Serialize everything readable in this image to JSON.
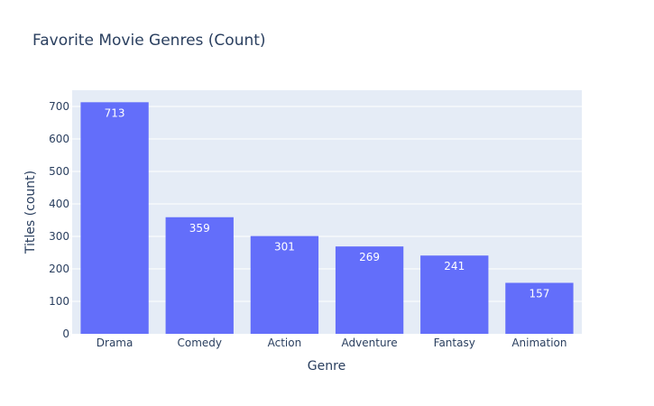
{
  "colors": {
    "plot_background": "#e5ecf6",
    "gridline": "#ffffff",
    "bar": "#636efa",
    "text": "#2a3f5f",
    "bar_label": "#ffffff"
  },
  "chart_data": {
    "type": "bar",
    "title": "Favorite Movie Genres (Count)",
    "xlabel": "Genre",
    "ylabel": "Titles (count)",
    "categories": [
      "Drama",
      "Comedy",
      "Action",
      "Adventure",
      "Fantasy",
      "Animation"
    ],
    "values": [
      713,
      359,
      301,
      269,
      241,
      157
    ],
    "data_labels": [
      "713",
      "359",
      "301",
      "269",
      "241",
      "157"
    ],
    "ylim": [
      0,
      750
    ],
    "yticks": [
      0,
      100,
      200,
      300,
      400,
      500,
      600,
      700
    ],
    "ytick_labels": [
      "0",
      "100",
      "200",
      "300",
      "400",
      "500",
      "600",
      "700"
    ],
    "grid": true,
    "legend": "none"
  }
}
